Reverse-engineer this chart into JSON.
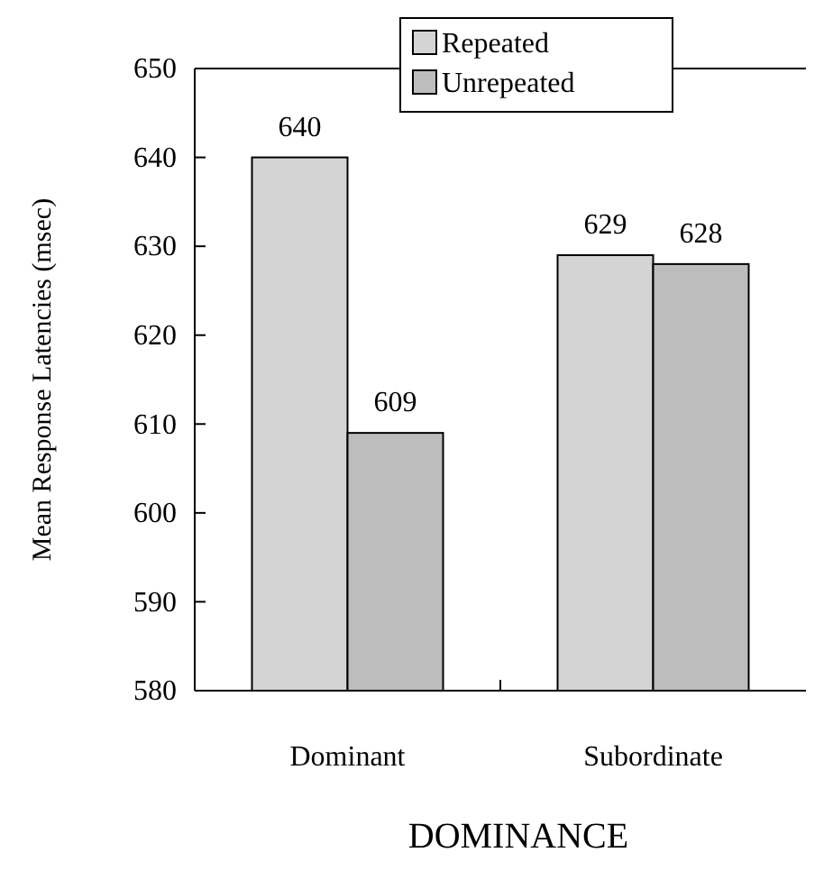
{
  "chart_data": {
    "type": "bar",
    "xlabel": "DOMINANCE",
    "ylabel": "Mean Response Latencies (msec)",
    "categories": [
      "Dominant",
      "Subordinate"
    ],
    "series": [
      {
        "name": "Repeated",
        "color": "#d4d4d4",
        "values": [
          640,
          629
        ]
      },
      {
        "name": "Unrepeated",
        "color": "#bdbdbd",
        "values": [
          609,
          628
        ]
      }
    ],
    "ylim": [
      580,
      650
    ],
    "yticks": [
      580,
      590,
      600,
      610,
      620,
      630,
      640,
      650
    ],
    "data_labels": true,
    "grid": false,
    "legend": "top right"
  }
}
